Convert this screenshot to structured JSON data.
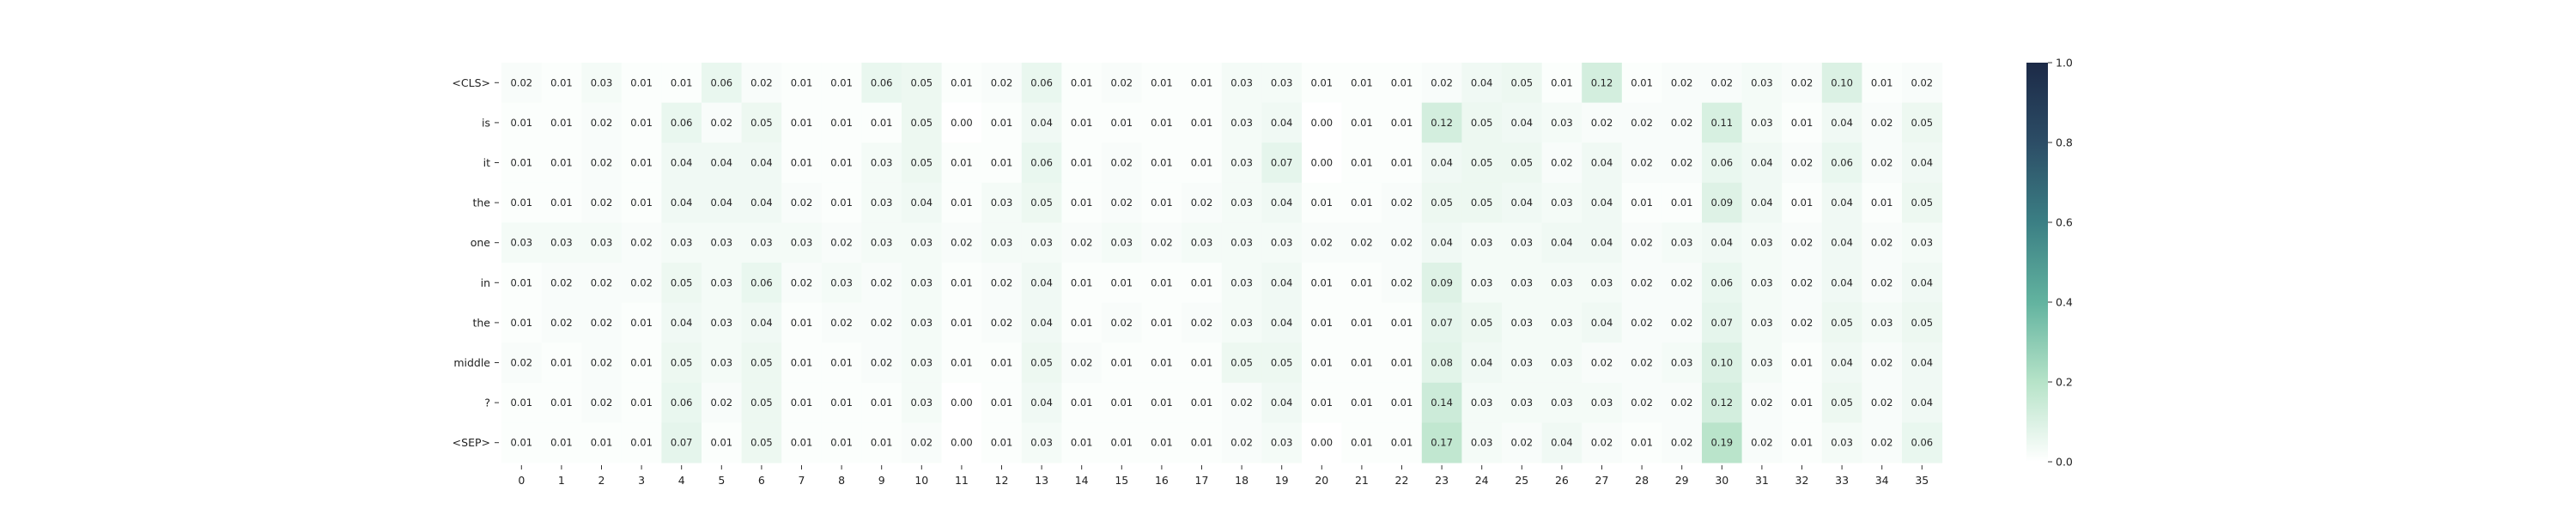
{
  "chart_data": {
    "type": "heatmap",
    "title": "",
    "xlabel": "",
    "ylabel": "",
    "x_labels": [
      "0",
      "1",
      "2",
      "3",
      "4",
      "5",
      "6",
      "7",
      "8",
      "9",
      "10",
      "11",
      "12",
      "13",
      "14",
      "15",
      "16",
      "17",
      "18",
      "19",
      "20",
      "21",
      "22",
      "23",
      "24",
      "25",
      "26",
      "27",
      "28",
      "29",
      "30",
      "31",
      "32",
      "33",
      "34",
      "35"
    ],
    "y_labels": [
      "<CLS>",
      "is",
      "it",
      "the",
      "one",
      "in",
      "the",
      "middle",
      "?",
      "<SEP>"
    ],
    "values": [
      [
        0.02,
        0.01,
        0.03,
        0.01,
        0.01,
        0.06,
        0.02,
        0.01,
        0.01,
        0.06,
        0.05,
        0.01,
        0.02,
        0.06,
        0.01,
        0.02,
        0.01,
        0.01,
        0.03,
        0.03,
        0.01,
        0.01,
        0.01,
        0.02,
        0.04,
        0.05,
        0.01,
        0.12,
        0.01,
        0.02,
        0.02,
        0.03,
        0.02,
        0.1,
        0.01,
        0.02
      ],
      [
        0.01,
        0.01,
        0.02,
        0.01,
        0.06,
        0.02,
        0.05,
        0.01,
        0.01,
        0.01,
        0.05,
        0.0,
        0.01,
        0.04,
        0.01,
        0.01,
        0.01,
        0.01,
        0.03,
        0.04,
        0.0,
        0.01,
        0.01,
        0.12,
        0.05,
        0.04,
        0.03,
        0.02,
        0.02,
        0.02,
        0.11,
        0.03,
        0.01,
        0.04,
        0.02,
        0.05
      ],
      [
        0.01,
        0.01,
        0.02,
        0.01,
        0.04,
        0.04,
        0.04,
        0.01,
        0.01,
        0.03,
        0.05,
        0.01,
        0.01,
        0.06,
        0.01,
        0.02,
        0.01,
        0.01,
        0.03,
        0.07,
        0.0,
        0.01,
        0.01,
        0.04,
        0.05,
        0.05,
        0.02,
        0.04,
        0.02,
        0.02,
        0.06,
        0.04,
        0.02,
        0.06,
        0.02,
        0.04
      ],
      [
        0.01,
        0.01,
        0.02,
        0.01,
        0.04,
        0.04,
        0.04,
        0.02,
        0.01,
        0.03,
        0.04,
        0.01,
        0.03,
        0.05,
        0.01,
        0.02,
        0.01,
        0.02,
        0.03,
        0.04,
        0.01,
        0.01,
        0.02,
        0.05,
        0.05,
        0.04,
        0.03,
        0.04,
        0.01,
        0.01,
        0.09,
        0.04,
        0.01,
        0.04,
        0.01,
        0.05
      ],
      [
        0.03,
        0.03,
        0.03,
        0.02,
        0.03,
        0.03,
        0.03,
        0.03,
        0.02,
        0.03,
        0.03,
        0.02,
        0.03,
        0.03,
        0.02,
        0.03,
        0.02,
        0.03,
        0.03,
        0.03,
        0.02,
        0.02,
        0.02,
        0.04,
        0.03,
        0.03,
        0.04,
        0.04,
        0.02,
        0.03,
        0.04,
        0.03,
        0.02,
        0.04,
        0.02,
        0.03
      ],
      [
        0.01,
        0.02,
        0.02,
        0.02,
        0.05,
        0.03,
        0.06,
        0.02,
        0.03,
        0.02,
        0.03,
        0.01,
        0.02,
        0.04,
        0.01,
        0.01,
        0.01,
        0.01,
        0.03,
        0.04,
        0.01,
        0.01,
        0.02,
        0.09,
        0.03,
        0.03,
        0.03,
        0.03,
        0.02,
        0.02,
        0.06,
        0.03,
        0.02,
        0.04,
        0.02,
        0.04
      ],
      [
        0.01,
        0.02,
        0.02,
        0.01,
        0.04,
        0.03,
        0.04,
        0.01,
        0.02,
        0.02,
        0.03,
        0.01,
        0.02,
        0.04,
        0.01,
        0.02,
        0.01,
        0.02,
        0.03,
        0.04,
        0.01,
        0.01,
        0.01,
        0.07,
        0.05,
        0.03,
        0.03,
        0.04,
        0.02,
        0.02,
        0.07,
        0.03,
        0.02,
        0.05,
        0.03,
        0.05
      ],
      [
        0.02,
        0.01,
        0.02,
        0.01,
        0.05,
        0.03,
        0.05,
        0.01,
        0.01,
        0.02,
        0.03,
        0.01,
        0.01,
        0.05,
        0.02,
        0.01,
        0.01,
        0.01,
        0.05,
        0.05,
        0.01,
        0.01,
        0.01,
        0.08,
        0.04,
        0.03,
        0.03,
        0.02,
        0.02,
        0.03,
        0.1,
        0.03,
        0.01,
        0.04,
        0.02,
        0.04
      ],
      [
        0.01,
        0.01,
        0.02,
        0.01,
        0.06,
        0.02,
        0.05,
        0.01,
        0.01,
        0.01,
        0.03,
        0.0,
        0.01,
        0.04,
        0.01,
        0.01,
        0.01,
        0.01,
        0.02,
        0.04,
        0.01,
        0.01,
        0.01,
        0.14,
        0.03,
        0.03,
        0.03,
        0.03,
        0.02,
        0.02,
        0.12,
        0.02,
        0.01,
        0.05,
        0.02,
        0.04
      ],
      [
        0.01,
        0.01,
        0.01,
        0.01,
        0.07,
        0.01,
        0.05,
        0.01,
        0.01,
        0.01,
        0.02,
        0.0,
        0.01,
        0.03,
        0.01,
        0.01,
        0.01,
        0.01,
        0.02,
        0.03,
        0.0,
        0.01,
        0.01,
        0.17,
        0.03,
        0.02,
        0.04,
        0.02,
        0.01,
        0.02,
        0.19,
        0.02,
        0.01,
        0.03,
        0.02,
        0.06
      ]
    ],
    "value_format": "0.00",
    "colorbar": {
      "min": 0.0,
      "max": 1.0,
      "ticks": [
        "0.0",
        "0.2",
        "0.4",
        "0.6",
        "0.8",
        "1.0"
      ],
      "colormap": [
        "#ffffff",
        "#b6e3c8",
        "#62b39f",
        "#3b7f84",
        "#2c4d66",
        "#1c2a47"
      ]
    },
    "legend_position": "right",
    "grid": false
  }
}
